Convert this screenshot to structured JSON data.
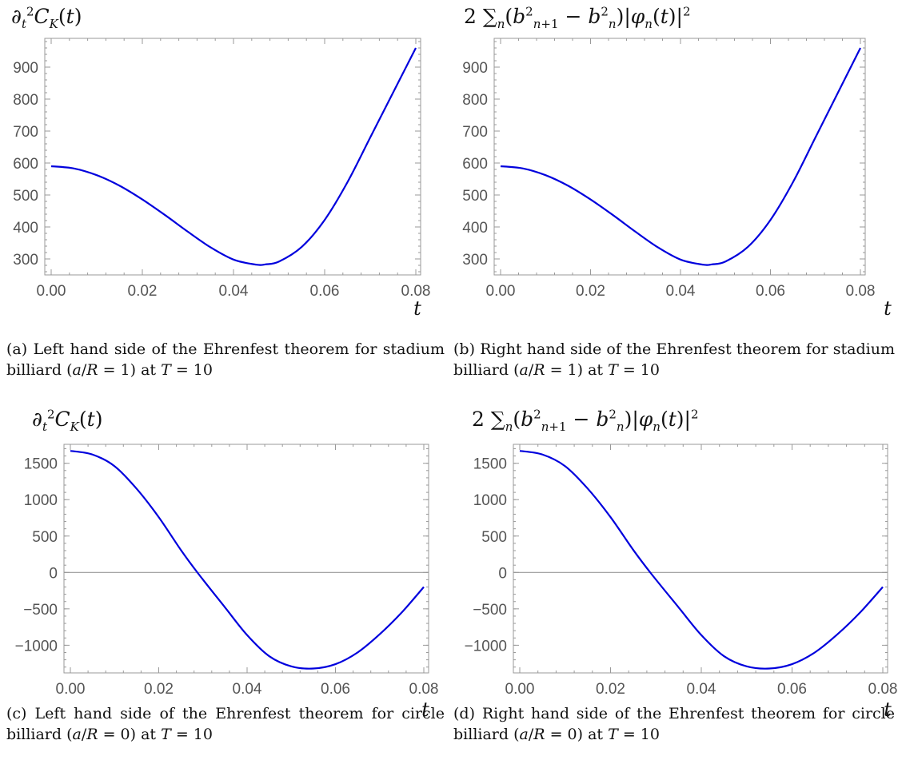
{
  "chart_data": [
    {
      "id": "a",
      "type": "line",
      "ylabel": "∂_t² C_K(t)",
      "xlabel": "t",
      "xlim": [
        0,
        0.08
      ],
      "ylim": [
        250,
        990
      ],
      "xticks": [
        0.0,
        0.02,
        0.04,
        0.06,
        0.08
      ],
      "xtick_labels": [
        "0.00",
        "0.02",
        "0.04",
        "0.06",
        "0.08"
      ],
      "yticks": [
        300,
        400,
        500,
        600,
        700,
        800,
        900
      ],
      "ytick_labels": [
        "300",
        "400",
        "500",
        "600",
        "700",
        "800",
        "900"
      ],
      "zero_line": false,
      "line_color": "#0000dd",
      "series": [
        {
          "x": [
            0,
            0.005,
            0.01,
            0.015,
            0.02,
            0.025,
            0.03,
            0.035,
            0.04,
            0.045,
            0.047,
            0.05,
            0.055,
            0.06,
            0.065,
            0.07,
            0.075,
            0.08
          ],
          "y": [
            590,
            583,
            562,
            529,
            486,
            437,
            385,
            336,
            298,
            282,
            283,
            292,
            338,
            422,
            540,
            680,
            820,
            960
          ]
        }
      ],
      "caption_label": "(a)",
      "caption_text": "Left hand side of the Ehrenfest theorem for stadium billiard (a/R = 1) at T = 10"
    },
    {
      "id": "b",
      "type": "line",
      "ylabel": "2 Σ_n (b²_{n+1} − b²_n)|φ_n(t)|²",
      "xlabel": "t",
      "xlim": [
        0,
        0.08
      ],
      "ylim": [
        250,
        990
      ],
      "xticks": [
        0.0,
        0.02,
        0.04,
        0.06,
        0.08
      ],
      "xtick_labels": [
        "0.00",
        "0.02",
        "0.04",
        "0.06",
        "0.08"
      ],
      "yticks": [
        300,
        400,
        500,
        600,
        700,
        800,
        900
      ],
      "ytick_labels": [
        "300",
        "400",
        "500",
        "600",
        "700",
        "800",
        "900"
      ],
      "zero_line": false,
      "line_color": "#0000dd",
      "series": [
        {
          "x": [
            0,
            0.005,
            0.01,
            0.015,
            0.02,
            0.025,
            0.03,
            0.035,
            0.04,
            0.045,
            0.047,
            0.05,
            0.055,
            0.06,
            0.065,
            0.07,
            0.075,
            0.08
          ],
          "y": [
            590,
            583,
            562,
            529,
            486,
            437,
            385,
            336,
            298,
            282,
            283,
            292,
            338,
            422,
            540,
            680,
            820,
            960
          ]
        }
      ],
      "caption_label": "(b)",
      "caption_text": "Right hand side of the Ehrenfest theorem for stadium billiard (a/R = 1) at T = 10"
    },
    {
      "id": "c",
      "type": "line",
      "ylabel": "∂_t² C_K(t)",
      "xlabel": "t",
      "xlim": [
        0,
        0.08
      ],
      "ylim": [
        -1380,
        1760
      ],
      "xticks": [
        0.0,
        0.02,
        0.04,
        0.06,
        0.08
      ],
      "xtick_labels": [
        "0.00",
        "0.02",
        "0.04",
        "0.06",
        "0.08"
      ],
      "yticks": [
        -1000,
        -500,
        0,
        500,
        1000,
        1500
      ],
      "ytick_labels": [
        "−1000",
        "−500",
        "0",
        "500",
        "1000",
        "1500"
      ],
      "zero_line": true,
      "line_color": "#0000dd",
      "series": [
        {
          "x": [
            0,
            0.005,
            0.01,
            0.015,
            0.02,
            0.025,
            0.029,
            0.035,
            0.04,
            0.045,
            0.05,
            0.055,
            0.06,
            0.065,
            0.07,
            0.075,
            0.08
          ],
          "y": [
            1670,
            1620,
            1460,
            1150,
            760,
            310,
            -20,
            -480,
            -860,
            -1150,
            -1290,
            -1320,
            -1260,
            -1100,
            -850,
            -550,
            -200
          ]
        }
      ],
      "caption_label": "(c)",
      "caption_text": "Left hand side of the Ehrenfest theorem for circle billiard (a/R = 0) at T = 10"
    },
    {
      "id": "d",
      "type": "line",
      "ylabel": "2 Σ_n (b²_{n+1} − b²_n)|φ_n(t)|²",
      "xlabel": "t",
      "xlim": [
        0,
        0.08
      ],
      "ylim": [
        -1380,
        1760
      ],
      "xticks": [
        0.0,
        0.02,
        0.04,
        0.06,
        0.08
      ],
      "xtick_labels": [
        "0.00",
        "0.02",
        "0.04",
        "0.06",
        "0.08"
      ],
      "yticks": [
        -1000,
        -500,
        0,
        500,
        1000,
        1500
      ],
      "ytick_labels": [
        "−1000",
        "−500",
        "0",
        "500",
        "1000",
        "1500"
      ],
      "zero_line": true,
      "line_color": "#0000dd",
      "series": [
        {
          "x": [
            0,
            0.005,
            0.01,
            0.015,
            0.02,
            0.025,
            0.029,
            0.035,
            0.04,
            0.045,
            0.05,
            0.055,
            0.06,
            0.065,
            0.07,
            0.075,
            0.08
          ],
          "y": [
            1670,
            1620,
            1460,
            1150,
            760,
            310,
            -20,
            -480,
            -860,
            -1150,
            -1290,
            -1320,
            -1260,
            -1100,
            -850,
            -550,
            -200
          ]
        }
      ],
      "caption_label": "(d)",
      "caption_text": "Right hand side of the Ehrenfest theorem for circle billiard (a/R = 0) at T = 10"
    }
  ],
  "colors": {
    "line": "#0000dd",
    "frame": "#999999",
    "tick_text": "#555555",
    "zero_line": "#999999"
  }
}
